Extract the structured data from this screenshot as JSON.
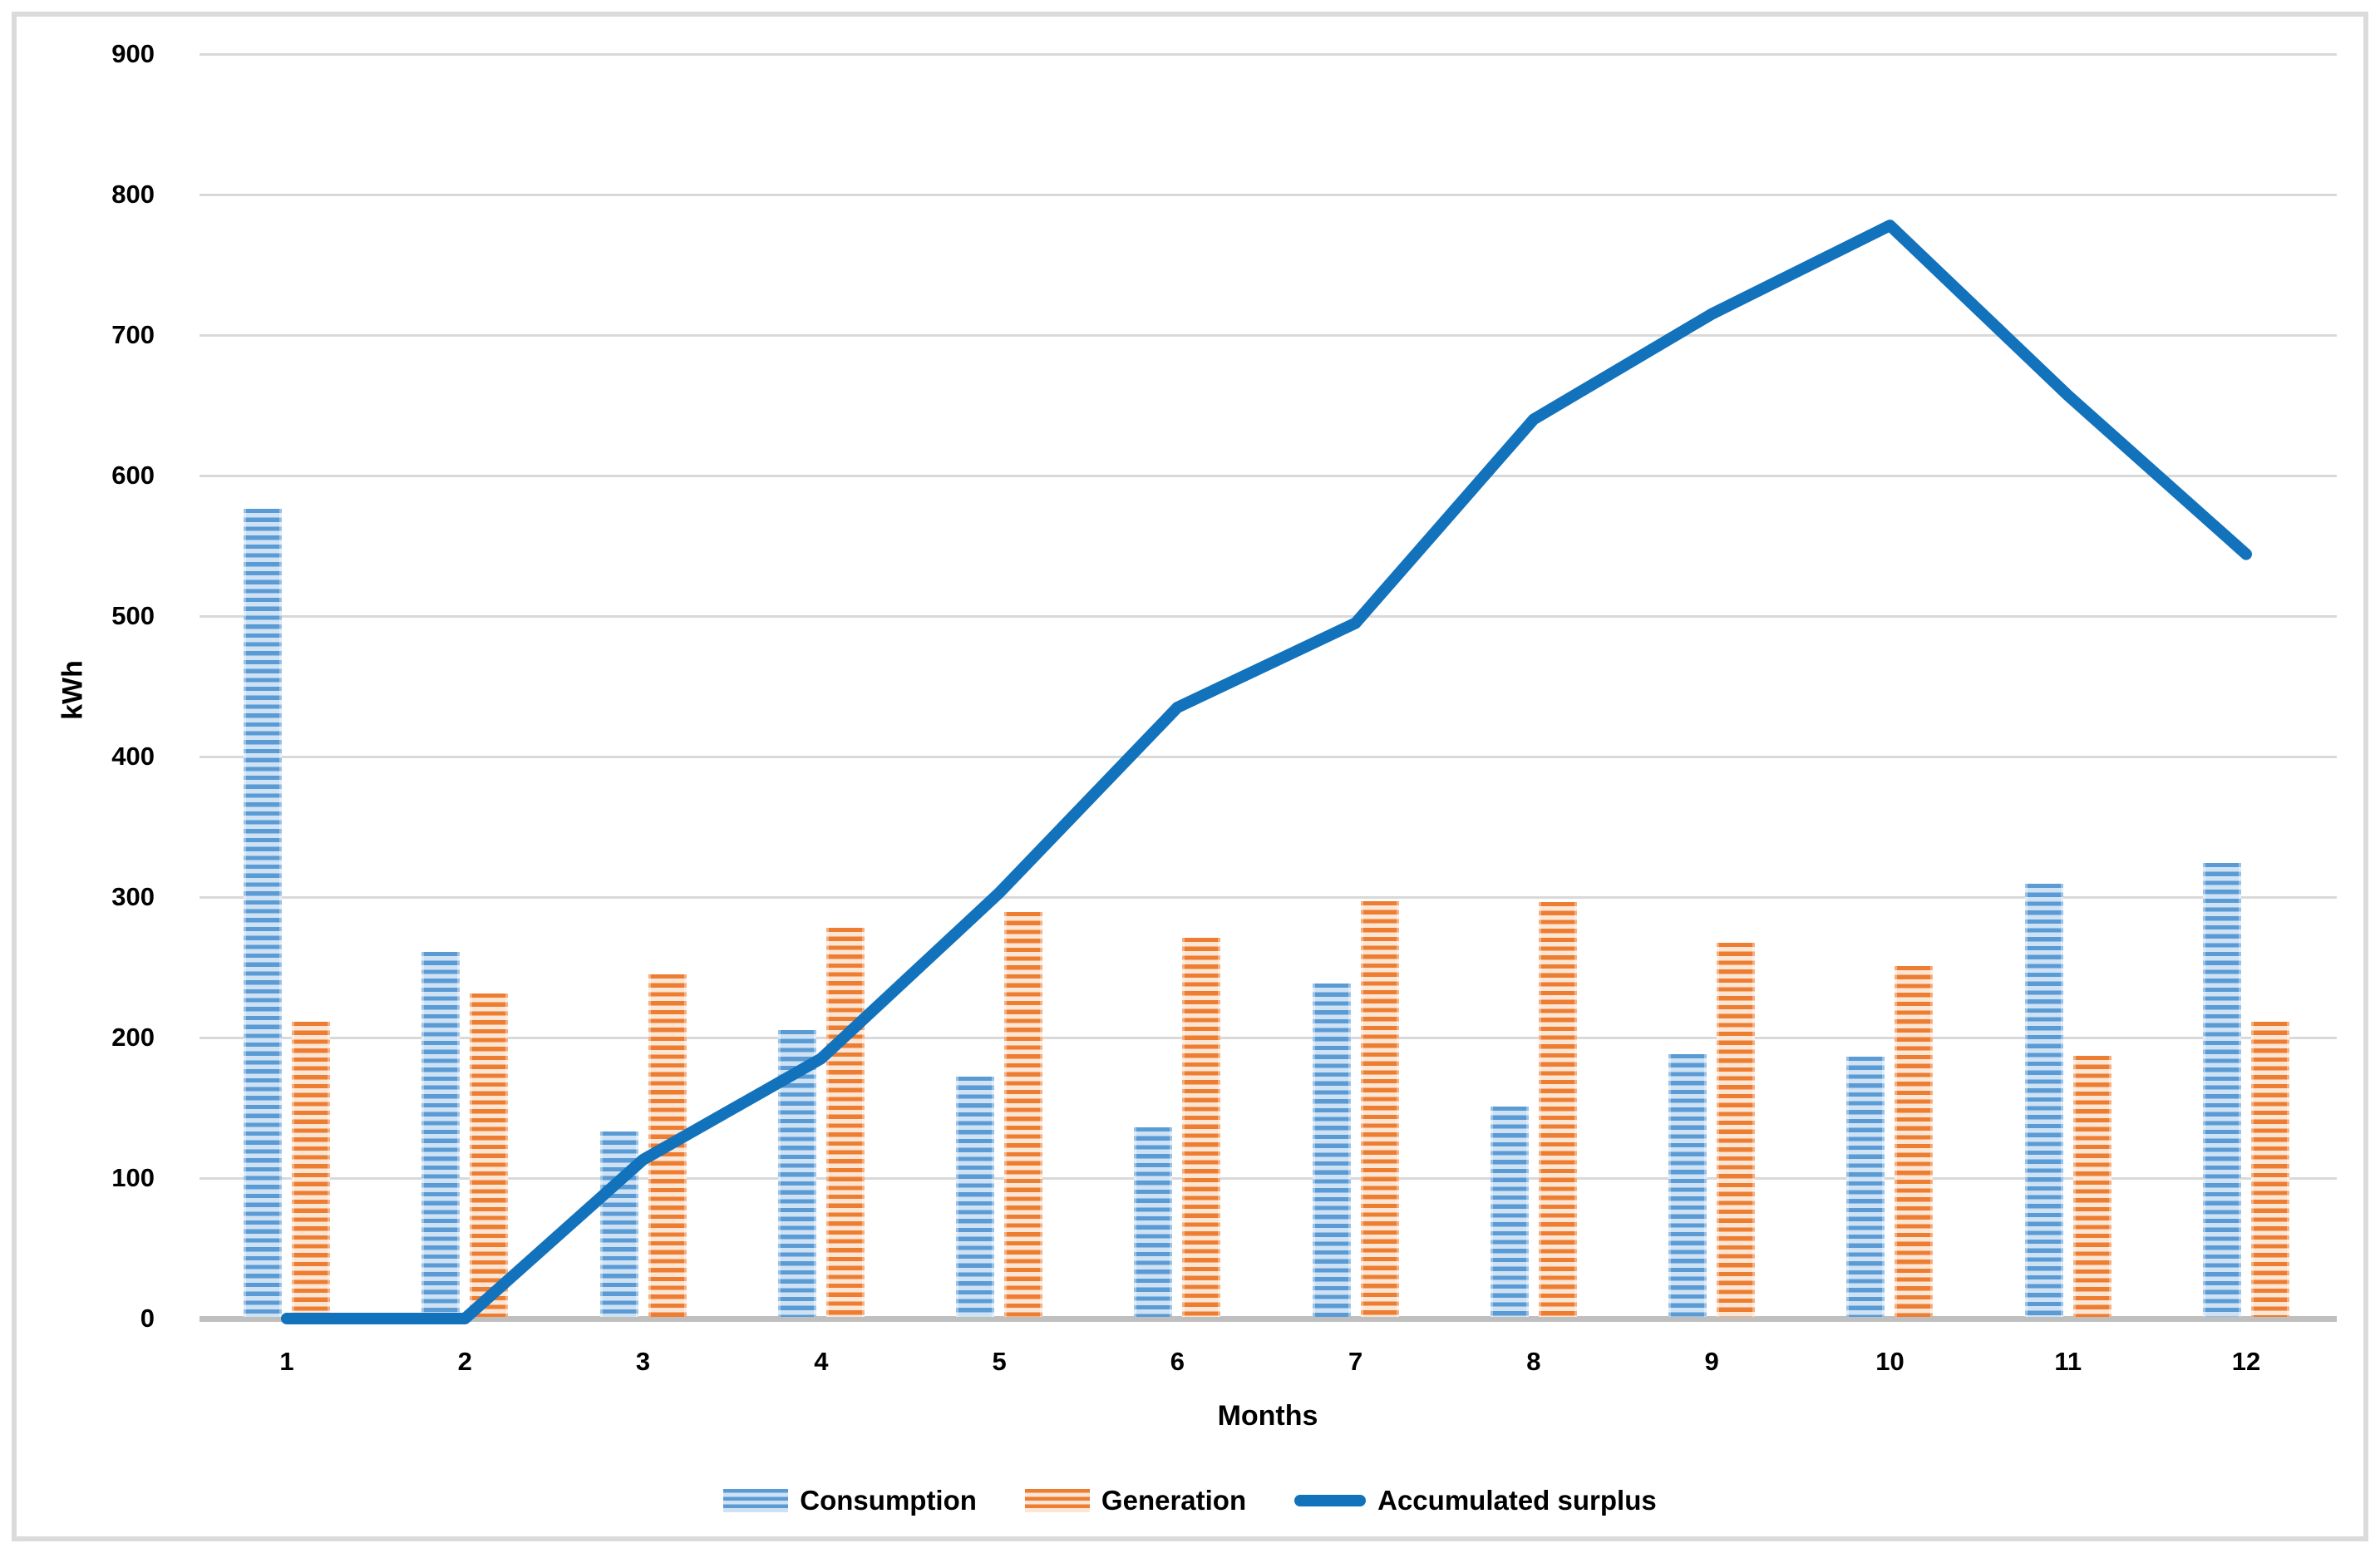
{
  "chart_data": {
    "type": "bar",
    "title": "",
    "categories": [
      "1",
      "2",
      "3",
      "4",
      "5",
      "6",
      "7",
      "8",
      "9",
      "10",
      "11",
      "12"
    ],
    "series": [
      {
        "name": "Consumption",
        "type": "bar",
        "values": [
          575,
          260,
          132,
          204,
          171,
          135,
          237,
          150,
          187,
          185,
          308,
          323
        ]
      },
      {
        "name": "Generation",
        "type": "bar",
        "values": [
          210,
          230,
          244,
          277,
          288,
          270,
          296,
          295,
          266,
          250,
          186,
          210
        ]
      },
      {
        "name": "Accumulated surplus",
        "type": "line",
        "values": [
          0,
          0,
          113,
          185,
          303,
          435,
          495,
          640,
          715,
          778,
          657,
          544
        ]
      }
    ],
    "xlabel": "Months",
    "ylabel": "kWh",
    "ylim": [
      0,
      900
    ],
    "y_ticks": [
      0,
      100,
      200,
      300,
      400,
      500,
      600,
      700,
      800,
      900
    ],
    "grid": true,
    "legend_position": "bottom"
  },
  "colors": {
    "consumption_main": "#5b9bd5",
    "consumption_light": "#cfe2f3",
    "generation_main": "#ed7d31",
    "generation_light": "#fbe5d5",
    "surplus_line": "#1272bb",
    "gridline": "#d9d9d9",
    "axis_line": "#bfbfbf",
    "frame_border": "#dbdbdb",
    "text": "#000000"
  }
}
